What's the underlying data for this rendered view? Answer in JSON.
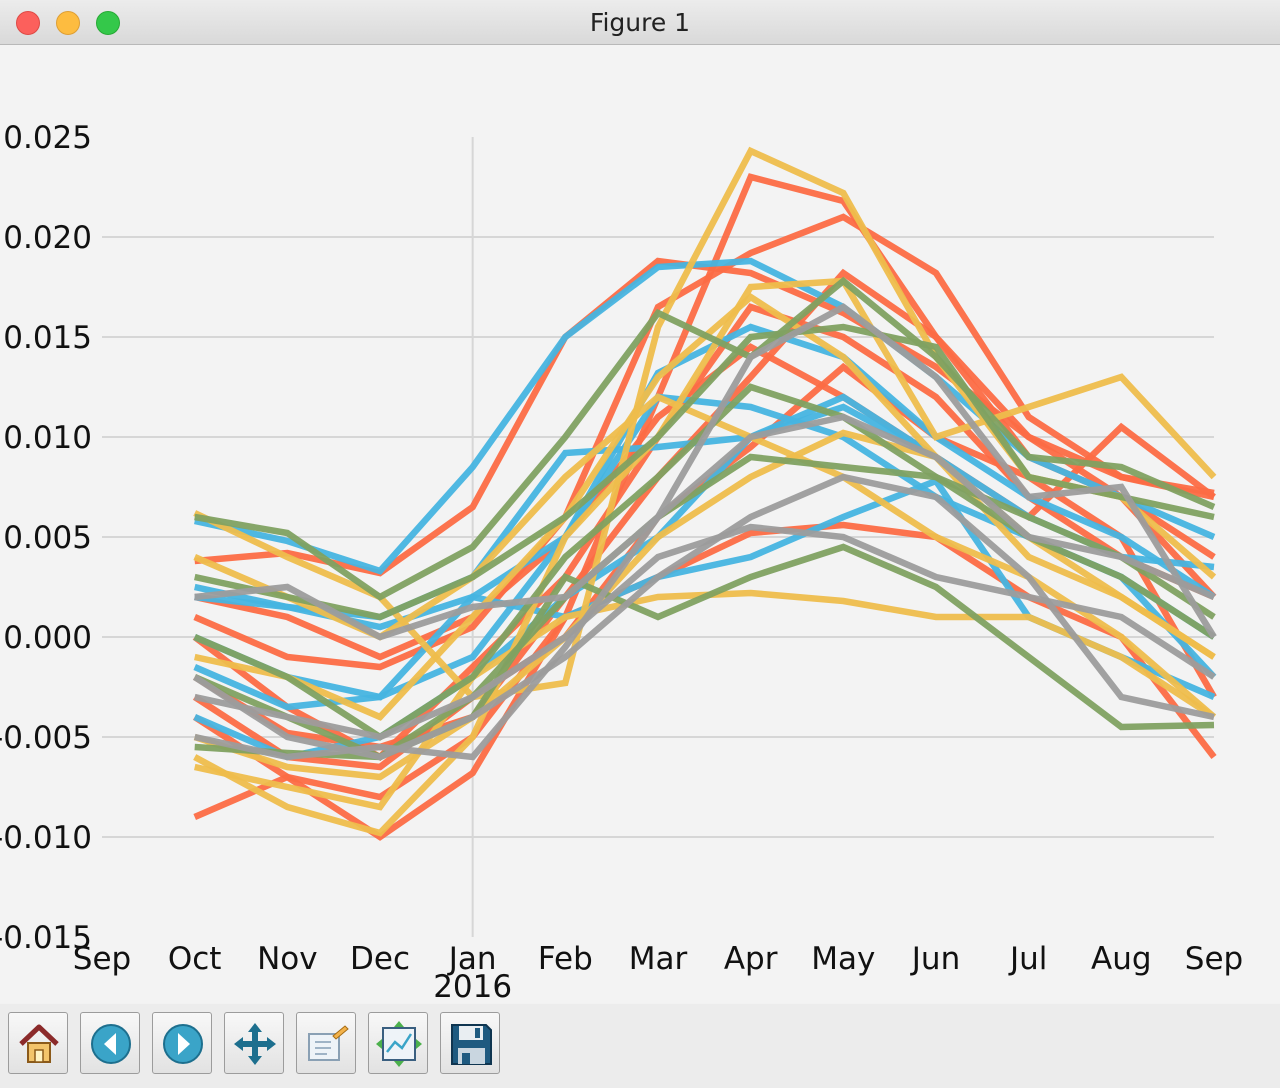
{
  "window": {
    "title": "Figure 1"
  },
  "toolbar": {
    "buttons": [
      {
        "name": "home-button",
        "icon": "home-icon"
      },
      {
        "name": "back-button",
        "icon": "back-arrow-icon"
      },
      {
        "name": "forward-button",
        "icon": "forward-arrow-icon"
      },
      {
        "name": "pan-button",
        "icon": "pan-arrows-icon"
      },
      {
        "name": "zoom-button",
        "icon": "zoom-rect-icon"
      },
      {
        "name": "subplots-button",
        "icon": "subplots-config-icon"
      },
      {
        "name": "save-button",
        "icon": "floppy-disk-icon"
      }
    ]
  },
  "chart_data": {
    "type": "line",
    "title": "",
    "xlabel": "",
    "ylabel": "",
    "x": [
      "2015-10",
      "2015-11",
      "2015-12",
      "2016-01",
      "2016-02",
      "2016-03",
      "2016-04",
      "2016-05",
      "2016-06",
      "2016-07",
      "2016-08",
      "2016-09"
    ],
    "xlim": [
      "2015-09",
      "2016-09"
    ],
    "ylim": [
      -0.015,
      0.025
    ],
    "x_ticks": [
      "Sep",
      "Oct",
      "Nov",
      "Dec",
      "Jan",
      "Feb",
      "Mar",
      "Apr",
      "May",
      "Jun",
      "Jul",
      "Aug",
      "Sep"
    ],
    "x_year_label": "2016",
    "y_ticks": [
      "0.025",
      "0.020",
      "0.015",
      "0.010",
      "0.005",
      "0.000",
      "-0.005",
      "-0.010",
      "-0.015"
    ],
    "grid": true,
    "colors": [
      "#fc6b45",
      "#46b4e0",
      "#eebd4c",
      "#7fa161",
      "#9c9c9c"
    ],
    "series": [
      {
        "color": "#fc6b45",
        "values": [
          0.0038,
          0.0042,
          0.0032,
          0.0065,
          0.015,
          0.0188,
          0.0182,
          0.0162,
          0.0135,
          0.01,
          0.008,
          0.007
        ]
      },
      {
        "color": "#fc6b45",
        "values": [
          -0.009,
          -0.007,
          -0.01,
          -0.0068,
          0.001,
          0.012,
          0.023,
          0.0218,
          0.015,
          0.01,
          0.007,
          0.002
        ]
      },
      {
        "color": "#fc6b45",
        "values": [
          0.001,
          -0.001,
          -0.0015,
          0.0005,
          0.006,
          0.0165,
          0.0192,
          0.021,
          0.0182,
          0.011,
          0.008,
          0.0072
        ]
      },
      {
        "color": "#fc6b45",
        "values": [
          -0.002,
          -0.0048,
          -0.0055,
          -0.004,
          0.002,
          0.008,
          0.013,
          0.0182,
          0.015,
          0.009,
          0.007,
          0.004
        ]
      },
      {
        "color": "#fc6b45",
        "values": [
          0.0,
          -0.0035,
          -0.006,
          -0.0015,
          0.003,
          0.01,
          0.0165,
          0.015,
          0.012,
          0.007,
          0.004,
          0.002
        ]
      },
      {
        "color": "#fc6b45",
        "values": [
          -0.003,
          -0.006,
          -0.0065,
          -0.003,
          0.0,
          0.006,
          0.0095,
          0.0135,
          0.01,
          0.008,
          0.005,
          -0.003
        ]
      },
      {
        "color": "#fc6b45",
        "values": [
          0.002,
          0.001,
          -0.001,
          0.001,
          0.005,
          0.011,
          0.0145,
          0.012,
          0.009,
          0.006,
          0.0105,
          0.007
        ]
      },
      {
        "color": "#fc6b45",
        "values": [
          -0.004,
          -0.007,
          -0.008,
          -0.005,
          0.001,
          0.003,
          0.0052,
          0.0056,
          0.005,
          0.002,
          0.0,
          -0.006
        ]
      },
      {
        "color": "#46b4e0",
        "values": [
          0.0058,
          0.0048,
          0.0033,
          0.0085,
          0.015,
          0.0185,
          0.0188,
          0.0165,
          0.013,
          0.009,
          0.007,
          0.005
        ]
      },
      {
        "color": "#46b4e0",
        "values": [
          0.002,
          0.0015,
          0.001,
          0.003,
          0.0092,
          0.0095,
          0.01,
          0.0115,
          0.009,
          0.006,
          0.004,
          0.0035
        ]
      },
      {
        "color": "#46b4e0",
        "values": [
          -0.0015,
          -0.0035,
          -0.003,
          -0.001,
          0.005,
          0.0132,
          0.0155,
          0.014,
          0.01,
          0.007,
          0.005,
          0.002
        ]
      },
      {
        "color": "#46b4e0",
        "values": [
          -0.004,
          -0.006,
          -0.005,
          -0.002,
          0.002,
          0.005,
          0.01,
          0.012,
          0.009,
          0.005,
          0.003,
          -0.002
        ]
      },
      {
        "color": "#46b4e0",
        "values": [
          0.0,
          -0.002,
          -0.003,
          0.002,
          0.001,
          0.003,
          0.004,
          0.006,
          0.0078,
          0.001,
          -0.001,
          -0.003
        ]
      },
      {
        "color": "#46b4e0",
        "values": [
          0.0025,
          0.0015,
          0.0005,
          0.002,
          0.005,
          0.012,
          0.0115,
          0.01,
          0.007,
          0.005,
          0.003,
          0.0
        ]
      },
      {
        "color": "#eebd4c",
        "values": [
          0.0062,
          0.004,
          0.002,
          -0.003,
          -0.0023,
          0.0155,
          0.0243,
          0.0222,
          0.014,
          0.008,
          0.007,
          0.003
        ]
      },
      {
        "color": "#eebd4c",
        "values": [
          -0.006,
          -0.0085,
          -0.0098,
          -0.005,
          0.005,
          0.01,
          0.0175,
          0.0178,
          0.01,
          0.0115,
          0.013,
          0.008
        ]
      },
      {
        "color": "#eebd4c",
        "values": [
          -0.0065,
          -0.0075,
          -0.0085,
          -0.002,
          0.001,
          0.002,
          0.0022,
          0.0018,
          0.001,
          0.001,
          -0.001,
          -0.004
        ]
      },
      {
        "color": "#eebd4c",
        "values": [
          -0.001,
          -0.002,
          -0.004,
          0.001,
          0.006,
          0.013,
          0.017,
          0.014,
          0.009,
          0.004,
          0.002,
          -0.001
        ]
      },
      {
        "color": "#eebd4c",
        "values": [
          0.004,
          0.002,
          0.0,
          0.003,
          0.008,
          0.012,
          0.01,
          0.008,
          0.005,
          0.003,
          0.0,
          -0.004
        ]
      },
      {
        "color": "#eebd4c",
        "values": [
          -0.005,
          -0.0065,
          -0.007,
          -0.004,
          0.0,
          0.005,
          0.008,
          0.0102,
          0.009,
          0.005,
          0.002,
          -0.001
        ]
      },
      {
        "color": "#7fa161",
        "values": [
          0.006,
          0.0052,
          0.002,
          0.0045,
          0.01,
          0.0162,
          0.014,
          0.0178,
          0.014,
          0.009,
          0.0085,
          0.0065
        ]
      },
      {
        "color": "#7fa161",
        "values": [
          -0.0055,
          -0.0058,
          -0.006,
          -0.004,
          0.003,
          0.001,
          0.003,
          0.0045,
          0.0025,
          -0.001,
          -0.0045,
          -0.0044
        ]
      },
      {
        "color": "#7fa161",
        "values": [
          0.003,
          0.002,
          0.001,
          0.003,
          0.006,
          0.01,
          0.015,
          0.0155,
          0.0145,
          0.008,
          0.007,
          0.006
        ]
      },
      {
        "color": "#7fa161",
        "values": [
          0.0,
          -0.002,
          -0.005,
          -0.002,
          0.004,
          0.008,
          0.0125,
          0.011,
          0.008,
          0.005,
          0.003,
          0.0
        ]
      },
      {
        "color": "#7fa161",
        "values": [
          -0.002,
          -0.004,
          -0.006,
          -0.003,
          0.002,
          0.006,
          0.009,
          0.0085,
          0.008,
          0.006,
          0.004,
          0.001
        ]
      },
      {
        "color": "#9c9c9c",
        "values": [
          -0.005,
          -0.006,
          -0.0055,
          -0.006,
          -0.0005,
          0.006,
          0.014,
          0.0165,
          0.013,
          0.007,
          0.0075,
          0.0
        ]
      },
      {
        "color": "#9c9c9c",
        "values": [
          -0.003,
          -0.004,
          -0.005,
          -0.003,
          0.0,
          0.004,
          0.0055,
          0.005,
          0.003,
          0.002,
          0.001,
          -0.002
        ]
      },
      {
        "color": "#9c9c9c",
        "values": [
          0.002,
          0.0025,
          0.0,
          0.0015,
          0.002,
          0.006,
          0.01,
          0.011,
          0.009,
          0.005,
          0.004,
          0.002
        ]
      },
      {
        "color": "#9c9c9c",
        "values": [
          -0.002,
          -0.005,
          -0.006,
          -0.004,
          -0.001,
          0.003,
          0.006,
          0.008,
          0.007,
          0.003,
          -0.003,
          -0.004
        ]
      }
    ]
  }
}
